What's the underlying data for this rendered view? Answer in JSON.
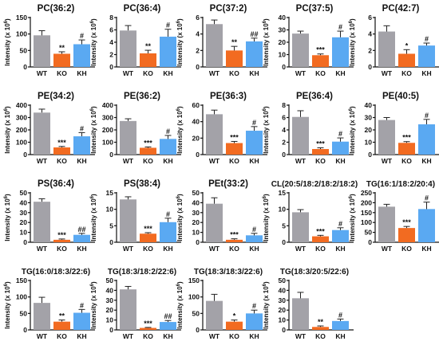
{
  "colors": {
    "WT": "#a3a2a8",
    "KO": "#f26b21",
    "KH": "#5aa9f2"
  },
  "y_axis_label_base": "Intensity (x 10",
  "y_axis_label_exp": "6",
  "y_axis_label_end": ")",
  "chart_data": [
    {
      "type": "bar",
      "title": "PC(36:2)",
      "categories": [
        "WT",
        "KO",
        "KH"
      ],
      "values": [
        96,
        40,
        69
      ],
      "errors": [
        14,
        6,
        13
      ],
      "significance": [
        "",
        "**",
        "#"
      ],
      "ylim": [
        0,
        150
      ],
      "yticks": [
        0,
        50,
        100,
        150
      ]
    },
    {
      "type": "bar",
      "title": "PC(36:4)",
      "categories": [
        "WT",
        "KO",
        "KH"
      ],
      "values": [
        5.9,
        2.2,
        4.9
      ],
      "errors": [
        0.8,
        0.5,
        1.2
      ],
      "significance": [
        "",
        "**",
        "#"
      ],
      "ylim": [
        0,
        8
      ],
      "yticks": [
        0,
        2,
        4,
        6,
        8
      ]
    },
    {
      "type": "bar",
      "title": "PC(37:2)",
      "categories": [
        "WT",
        "KO",
        "KH"
      ],
      "values": [
        5.2,
        2.0,
        3.1
      ],
      "errors": [
        0.5,
        0.5,
        0.4
      ],
      "significance": [
        "",
        "**",
        "##"
      ],
      "ylim": [
        0,
        6
      ],
      "yticks": [
        0,
        2,
        4,
        6
      ]
    },
    {
      "type": "bar",
      "title": "PC(37:5)",
      "categories": [
        "WT",
        "KO",
        "KH"
      ],
      "values": [
        27,
        9.5,
        24
      ],
      "errors": [
        2,
        1,
        5
      ],
      "significance": [
        "",
        "***",
        "#"
      ],
      "ylim": [
        0,
        40
      ],
      "yticks": [
        0,
        10,
        20,
        30,
        40
      ]
    },
    {
      "type": "bar",
      "title": "PC(42:7)",
      "categories": [
        "WT",
        "KO",
        "KH"
      ],
      "values": [
        4.3,
        1.6,
        2.6
      ],
      "errors": [
        0.7,
        0.5,
        0.3
      ],
      "significance": [
        "",
        "*",
        "#"
      ],
      "ylim": [
        0,
        6
      ],
      "yticks": [
        0,
        2,
        4,
        6
      ]
    },
    {
      "type": "bar",
      "title": "PE(34:2)",
      "categories": [
        "WT",
        "KO",
        "KH"
      ],
      "values": [
        340,
        58,
        148
      ],
      "errors": [
        28,
        8,
        30
      ],
      "significance": [
        "",
        "***",
        "#"
      ],
      "ylim": [
        0,
        400
      ],
      "yticks": [
        0,
        100,
        200,
        300,
        400
      ]
    },
    {
      "type": "bar",
      "title": "PE(36:2)",
      "categories": [
        "WT",
        "KO",
        "KH"
      ],
      "values": [
        272,
        55,
        127
      ],
      "errors": [
        18,
        7,
        28
      ],
      "significance": [
        "",
        "***",
        "#"
      ],
      "ylim": [
        0,
        400
      ],
      "yticks": [
        0,
        100,
        200,
        300,
        400
      ]
    },
    {
      "type": "bar",
      "title": "PE(36:3)",
      "categories": [
        "WT",
        "KO",
        "KH"
      ],
      "values": [
        49,
        14,
        29
      ],
      "errors": [
        5,
        2,
        5
      ],
      "significance": [
        "",
        "***",
        "#"
      ],
      "ylim": [
        0,
        60
      ],
      "yticks": [
        0,
        20,
        40,
        60
      ]
    },
    {
      "type": "bar",
      "title": "PE(36:4)",
      "categories": [
        "WT",
        "KO",
        "KH"
      ],
      "values": [
        6.1,
        0.9,
        2.1
      ],
      "errors": [
        1.0,
        0.2,
        0.6
      ],
      "significance": [
        "",
        "***",
        "#"
      ],
      "ylim": [
        0,
        8
      ],
      "yticks": [
        0,
        2,
        4,
        6,
        8
      ]
    },
    {
      "type": "bar",
      "title": "PE(40:5)",
      "categories": [
        "WT",
        "KO",
        "KH"
      ],
      "values": [
        28,
        9.5,
        24.5
      ],
      "errors": [
        2,
        1,
        4
      ],
      "significance": [
        "",
        "***",
        "#"
      ],
      "ylim": [
        0,
        40
      ],
      "yticks": [
        0,
        10,
        20,
        30,
        40
      ]
    },
    {
      "type": "bar",
      "title": "PS(36:4)",
      "categories": [
        "WT",
        "KO",
        "KH"
      ],
      "values": [
        41,
        2.5,
        7.5
      ],
      "errors": [
        3,
        0.8,
        1.5
      ],
      "significance": [
        "",
        "***",
        "##"
      ],
      "ylim": [
        0,
        50
      ],
      "yticks": [
        0,
        10,
        20,
        30,
        40,
        50
      ]
    },
    {
      "type": "bar",
      "title": "PS(38:4)",
      "categories": [
        "WT",
        "KO",
        "KH"
      ],
      "values": [
        13,
        2.6,
        6.1
      ],
      "errors": [
        0.8,
        0.3,
        1.2
      ],
      "significance": [
        "",
        "***",
        "#"
      ],
      "ylim": [
        0,
        15
      ],
      "yticks": [
        0,
        5,
        10,
        15
      ]
    },
    {
      "type": "bar",
      "title": "PEt(33:2)",
      "categories": [
        "WT",
        "KO",
        "KH"
      ],
      "values": [
        39,
        2.5,
        7
      ],
      "errors": [
        6,
        1,
        2
      ],
      "significance": [
        "",
        "***",
        "#"
      ],
      "ylim": [
        0,
        50
      ],
      "yticks": [
        0,
        10,
        20,
        30,
        40,
        50
      ]
    },
    {
      "type": "bar",
      "title": "CL(20:5/18:2/18:2/18:2)",
      "categories": [
        "WT",
        "KO",
        "KH"
      ],
      "values": [
        9.1,
        1.8,
        3.7
      ],
      "errors": [
        0.8,
        0.3,
        0.7
      ],
      "significance": [
        "",
        "***",
        "#"
      ],
      "ylim": [
        0,
        15
      ],
      "yticks": [
        0,
        5,
        10,
        15
      ]
    },
    {
      "type": "bar",
      "title": "TG(16:1/18:2/20:4)",
      "categories": [
        "WT",
        "KO",
        "KH"
      ],
      "values": [
        180,
        72,
        168
      ],
      "errors": [
        12,
        8,
        35
      ],
      "significance": [
        "",
        "***",
        "#"
      ],
      "ylim": [
        0,
        250
      ],
      "yticks": [
        0,
        50,
        100,
        150,
        200,
        250
      ]
    },
    {
      "type": "bar",
      "title": "TG(16:0/18:3/22:6)",
      "categories": [
        "WT",
        "KO",
        "KH"
      ],
      "values": [
        82,
        25,
        52
      ],
      "errors": [
        17,
        5,
        10
      ],
      "significance": [
        "",
        "**",
        "#"
      ],
      "ylim": [
        0,
        150
      ],
      "yticks": [
        0,
        50,
        100,
        150
      ]
    },
    {
      "type": "bar",
      "title": "TG(18:3/18:2/22:6)",
      "categories": [
        "WT",
        "KO",
        "KH"
      ],
      "values": [
        41,
        2,
        8
      ],
      "errors": [
        3,
        0.5,
        1.5
      ],
      "significance": [
        "",
        "***",
        "##"
      ],
      "ylim": [
        0,
        50
      ],
      "yticks": [
        0,
        10,
        20,
        30,
        40,
        50
      ]
    },
    {
      "type": "bar",
      "title": "TG(18:3/18:3/22:6)",
      "categories": [
        "WT",
        "KO",
        "KH"
      ],
      "values": [
        88,
        25,
        50
      ],
      "errors": [
        20,
        5,
        10
      ],
      "significance": [
        "",
        "*",
        "#"
      ],
      "ylim": [
        0,
        150
      ],
      "yticks": [
        0,
        50,
        100,
        150
      ]
    },
    {
      "type": "bar",
      "title": "TG(18:3/20:5/22:6)",
      "categories": [
        "WT",
        "KO",
        "KH"
      ],
      "values": [
        32,
        3,
        9
      ],
      "errors": [
        6,
        1,
        2
      ],
      "significance": [
        "",
        "**",
        "#"
      ],
      "ylim": [
        0,
        50
      ],
      "yticks": [
        0,
        10,
        20,
        30,
        40,
        50
      ]
    }
  ]
}
